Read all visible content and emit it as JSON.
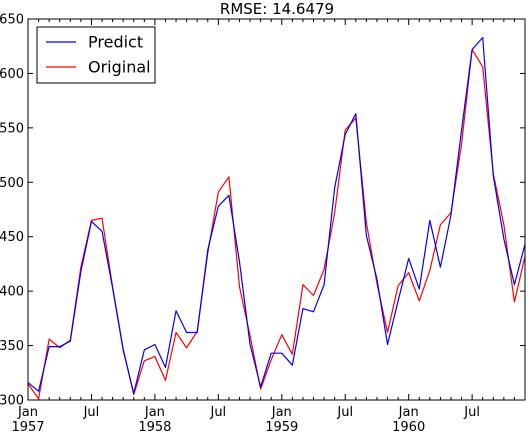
{
  "chart_data": {
    "type": "line",
    "title": "RMSE: 14.6479",
    "xlabel": "",
    "ylabel": "",
    "ylim": [
      300,
      650
    ],
    "yticks": [
      300,
      350,
      400,
      450,
      500,
      550,
      600,
      650
    ],
    "xlim": [
      "1957-01",
      "1960-12"
    ],
    "xticks": [
      {
        "x": "1957-01",
        "label": "Jan",
        "sublabel": "1957"
      },
      {
        "x": "1957-07",
        "label": "Jul",
        "sublabel": ""
      },
      {
        "x": "1958-01",
        "label": "Jan",
        "sublabel": "1958"
      },
      {
        "x": "1958-07",
        "label": "Jul",
        "sublabel": ""
      },
      {
        "x": "1959-01",
        "label": "Jan",
        "sublabel": "1959"
      },
      {
        "x": "1959-07",
        "label": "Jul",
        "sublabel": ""
      },
      {
        "x": "1960-01",
        "label": "Jan",
        "sublabel": "1960"
      },
      {
        "x": "1960-07",
        "label": "Jul",
        "sublabel": ""
      }
    ],
    "grid": false,
    "legend": "top-left",
    "x": [
      "1957-01",
      "1957-02",
      "1957-03",
      "1957-04",
      "1957-05",
      "1957-06",
      "1957-07",
      "1957-08",
      "1957-09",
      "1957-10",
      "1957-11",
      "1957-12",
      "1958-01",
      "1958-02",
      "1958-03",
      "1958-04",
      "1958-05",
      "1958-06",
      "1958-07",
      "1958-08",
      "1958-09",
      "1958-10",
      "1958-11",
      "1958-12",
      "1959-01",
      "1959-02",
      "1959-03",
      "1959-04",
      "1959-05",
      "1959-06",
      "1959-07",
      "1959-08",
      "1959-09",
      "1959-10",
      "1959-11",
      "1959-12",
      "1960-01",
      "1960-02",
      "1960-03",
      "1960-04",
      "1960-05",
      "1960-06",
      "1960-07",
      "1960-08",
      "1960-09",
      "1960-10",
      "1960-11",
      "1960-12"
    ],
    "series": [
      {
        "name": "Predict",
        "color": "#0000ff",
        "values": [
          316,
          308,
          349,
          349,
          354,
          418,
          464,
          455,
          403,
          346,
          306,
          346,
          351,
          330,
          382,
          362,
          362,
          438,
          478,
          488,
          427,
          351,
          312,
          343,
          343,
          332,
          384,
          381,
          406,
          495,
          544,
          563,
          451,
          411,
          351,
          391,
          430,
          402,
          465,
          422,
          470,
          548,
          622,
          633,
          506,
          448,
          406,
          443
        ]
      },
      {
        "name": "Original",
        "color": "#ff0000",
        "values": [
          315,
          301,
          356,
          348,
          355,
          422,
          465,
          467,
          404,
          347,
          305,
          336,
          340,
          318,
          362,
          348,
          363,
          435,
          491,
          505,
          404,
          359,
          310,
          337,
          360,
          342,
          406,
          396,
          420,
          472,
          548,
          559,
          463,
          407,
          362,
          405,
          417,
          391,
          419,
          461,
          472,
          535,
          622,
          606,
          508,
          461,
          390,
          432
        ]
      }
    ]
  }
}
